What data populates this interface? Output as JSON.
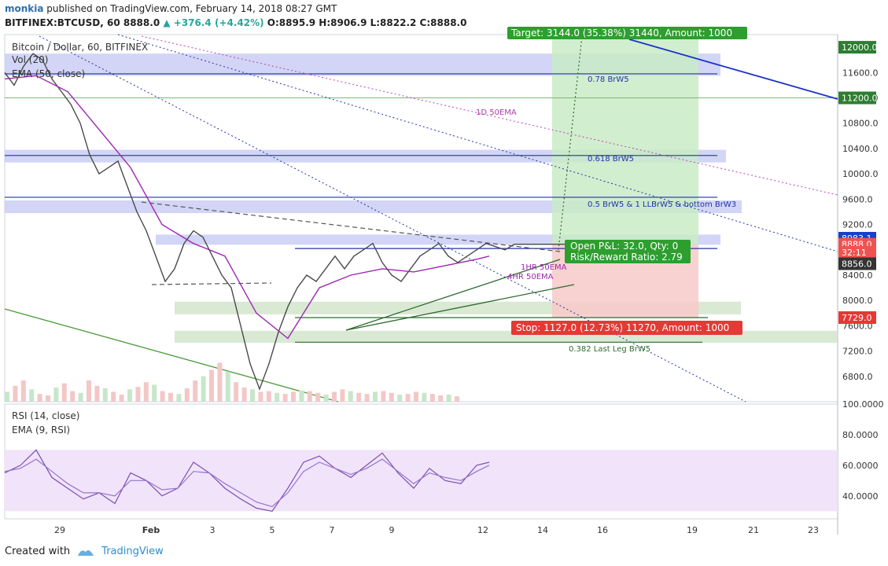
{
  "header": {
    "user": "monkia",
    "published": " published on TradingView.com, February 14, 2018 08:27 GMT",
    "symbol": "BITFINEX:BTCUSD, 60",
    "last": "8888.0",
    "change": "▲ +376.4 (+4.42%)",
    "ohlc": "O:8895.9 H:8906.9 L:8822.2 C:8888.0"
  },
  "legend": {
    "title": "Bitcoin / Dollar, 60, BITFINEX",
    "vol": "Vol (20)",
    "ema": "EMA (50, close)",
    "rsi": "RSI (14, close)",
    "rsi_ema": "EMA (9, RSI)"
  },
  "annotations": {
    "target": "Target: 3144.0 (35.38%) 31440, Amount: 1000",
    "stop": "Stop: 1127.0 (12.73%) 11270, Amount: 1000",
    "pnl": "Open P&L: 32.0, Qty: 0",
    "rr": "Risk/Reward Ratio: 2.79",
    "brw_078": "0.78 BrW5",
    "brw_0618": "0.618 BrW5",
    "brw_05": "0.5 BrW5 & 1 LLBrW5 & bottom BrW3",
    "lastleg": "0.382 Last Leg BrW5",
    "ema1d": "1D 50EMA",
    "ema4h": "4HR 50EMA",
    "ema1h": "1HR 50EMA"
  },
  "price_badges": [
    {
      "text": "12000.0",
      "price": 12000,
      "color": "#2e7d32"
    },
    {
      "text": "11200.0",
      "price": 11200,
      "color": "#2e7d32"
    },
    {
      "text": "8983.1",
      "price": 8983.1,
      "color": "#1a3fc8"
    },
    {
      "text": "8888.0",
      "price": 8888,
      "color": "#ef5350"
    },
    {
      "text": "32:11",
      "price": 8760,
      "color": "#ef5350"
    },
    {
      "text": "8856.0",
      "price": 8580,
      "color": "#333333"
    },
    {
      "text": "7729.0",
      "price": 7729,
      "color": "#e53935"
    }
  ],
  "chart_data": {
    "type": "line",
    "price_axis_ticks": [
      "11600.0",
      "11200.0",
      "10800.0",
      "10400.0",
      "10000.0",
      "9600.0",
      "9200.0",
      "8800.0",
      "8400.0",
      "8000.0",
      "7600.0",
      "7200.0",
      "6800.0"
    ],
    "rsi_axis_ticks": [
      "100.0000",
      "80.0000",
      "60.0000",
      "40.0000"
    ],
    "x_ticks": [
      "29",
      "Feb",
      "3",
      "5",
      "7",
      "9",
      "12",
      "14",
      "16",
      "19",
      "21",
      "23"
    ],
    "price_ylim": [
      6400,
      12200
    ],
    "rsi_ylim": [
      25,
      100
    ],
    "rsi_band": [
      30,
      70
    ],
    "series": [
      {
        "name": "Bitcoin / Dollar",
        "color": "#4a4a4a",
        "x": [
          0,
          3,
          6,
          9,
          12,
          15,
          18,
          21,
          24,
          27,
          30,
          33,
          36,
          39,
          42,
          45,
          48,
          51,
          54,
          57,
          60,
          63,
          66,
          69,
          72,
          75,
          78,
          81,
          84,
          87,
          90,
          93,
          96,
          99,
          102,
          105,
          108,
          111,
          114,
          117,
          120,
          123,
          126,
          129,
          132,
          135,
          138,
          141,
          144,
          147,
          150,
          153,
          156,
          159,
          162,
          165,
          168,
          171,
          174,
          177,
          180
        ],
        "values": [
          11600,
          11400,
          11700,
          11900,
          11800,
          11500,
          11300,
          11100,
          10800,
          10300,
          10000,
          10100,
          10200,
          9800,
          9400,
          9100,
          8700,
          8300,
          8500,
          8900,
          9100,
          9000,
          8700,
          8400,
          8200,
          7600,
          7000,
          6600,
          7000,
          7500,
          7900,
          8200,
          8400,
          8300,
          8500,
          8700,
          8500,
          8700,
          8800,
          8900,
          8600,
          8400,
          8300,
          8500,
          8700,
          8800,
          8900,
          8700,
          8600,
          8700,
          8800,
          8900,
          8850,
          8800,
          8888,
          8888,
          8888,
          8888,
          8888,
          8888,
          8888
        ]
      },
      {
        "name": "EMA (50, close)",
        "color": "#9c27b0",
        "x": [
          0,
          10,
          20,
          30,
          40,
          50,
          60,
          70,
          80,
          90,
          100,
          110,
          120,
          130,
          140,
          150,
          154
        ],
        "values": [
          11500,
          11550,
          11300,
          10700,
          10100,
          9200,
          8900,
          8700,
          7800,
          7400,
          8200,
          8400,
          8500,
          8450,
          8550,
          8650,
          8700
        ]
      },
      {
        "name": "RSI (14, close)",
        "color": "#7b4fb3",
        "x": [
          0,
          5,
          10,
          15,
          20,
          25,
          30,
          35,
          40,
          45,
          50,
          55,
          60,
          65,
          70,
          75,
          80,
          85,
          90,
          95,
          100,
          105,
          110,
          115,
          120,
          125,
          130,
          135,
          140,
          145,
          150,
          154
        ],
        "values": [
          55,
          60,
          70,
          52,
          45,
          38,
          42,
          35,
          55,
          50,
          40,
          45,
          62,
          55,
          45,
          38,
          32,
          30,
          45,
          62,
          66,
          58,
          52,
          60,
          68,
          55,
          45,
          58,
          50,
          48,
          60,
          62
        ]
      },
      {
        "name": "EMA (9, RSI)",
        "color": "#9575cd",
        "x": [
          0,
          5,
          10,
          15,
          20,
          25,
          30,
          35,
          40,
          45,
          50,
          55,
          60,
          65,
          70,
          75,
          80,
          85,
          90,
          95,
          100,
          105,
          110,
          115,
          120,
          125,
          130,
          135,
          140,
          145,
          150,
          154
        ],
        "values": [
          56,
          58,
          64,
          56,
          48,
          42,
          42,
          40,
          50,
          50,
          44,
          45,
          56,
          55,
          48,
          42,
          36,
          33,
          42,
          56,
          62,
          58,
          54,
          58,
          64,
          56,
          48,
          55,
          52,
          50,
          56,
          60
        ]
      }
    ],
    "volume": [
      28,
      45,
      60,
      35,
      22,
      18,
      40,
      52,
      30,
      25,
      60,
      45,
      38,
      28,
      20,
      35,
      42,
      55,
      48,
      30,
      25,
      22,
      38,
      60,
      72,
      90,
      110,
      85,
      55,
      40,
      35,
      28,
      30,
      25,
      22,
      28,
      32,
      30,
      25,
      20,
      28,
      35,
      30,
      25,
      22,
      28,
      30,
      25,
      20,
      22,
      28,
      25,
      22,
      18,
      20,
      15
    ]
  }
}
